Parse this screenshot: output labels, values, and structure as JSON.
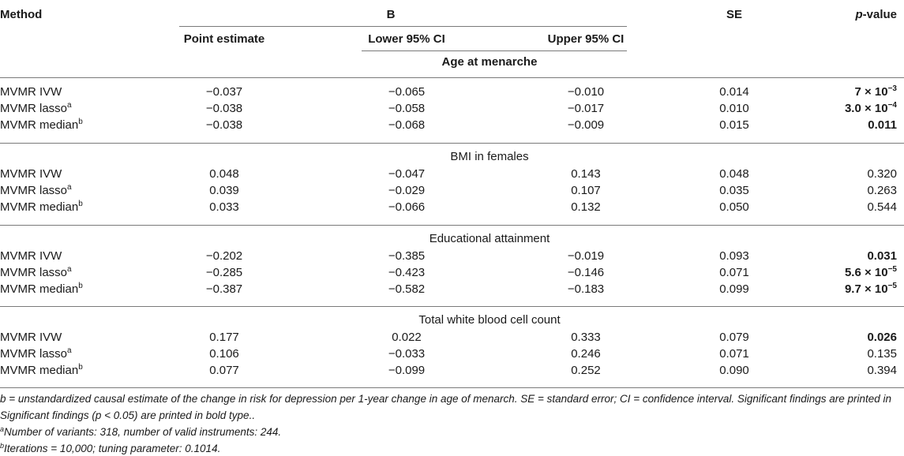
{
  "header": {
    "method": "Method",
    "b_group": "B",
    "point_estimate": "Point estimate",
    "lower_ci": "Lower 95% CI",
    "upper_ci": "Upper 95% CI",
    "se": "SE",
    "p_label": "p",
    "p_suffix": "-value"
  },
  "groups": [
    {
      "title": "Age at menarche",
      "rows": [
        {
          "method": "MVMR IVW",
          "sup": "",
          "pe": "−0.037",
          "lo": "−0.065",
          "up": "−0.010",
          "se": "0.014",
          "p_base": "7 × 10",
          "p_exp": "−3"
        },
        {
          "method": "MVMR lasso",
          "sup": "a",
          "pe": "−0.038",
          "lo": "−0.058",
          "up": "−0.017",
          "se": "0.010",
          "p_base": "3.0 × 10",
          "p_exp": "−4"
        },
        {
          "method": "MVMR median",
          "sup": "b",
          "pe": "−0.038",
          "lo": "−0.068",
          "up": "−0.009",
          "se": "0.015",
          "p_base": "0.011",
          "p_exp": ""
        }
      ]
    },
    {
      "title": "BMI in females",
      "rows": [
        {
          "method": "MVMR IVW",
          "sup": "",
          "pe": "0.048",
          "lo": "−0.047",
          "up": "0.143",
          "se": "0.048",
          "p_base": "0.320",
          "p_exp": ""
        },
        {
          "method": "MVMR lasso",
          "sup": "a",
          "pe": "0.039",
          "lo": "−0.029",
          "up": "0.107",
          "se": "0.035",
          "p_base": "0.263",
          "p_exp": ""
        },
        {
          "method": "MVMR median",
          "sup": "b",
          "pe": "0.033",
          "lo": "−0.066",
          "up": "0.132",
          "se": "0.050",
          "p_base": "0.544",
          "p_exp": ""
        }
      ]
    },
    {
      "title": "Educational attainment",
      "rows": [
        {
          "method": "MVMR IVW",
          "sup": "",
          "pe": "−0.202",
          "lo": "−0.385",
          "up": "−0.019",
          "se": "0.093",
          "p_base": "0.031",
          "p_exp": ""
        },
        {
          "method": "MVMR lasso",
          "sup": "a",
          "pe": "−0.285",
          "lo": "−0.423",
          "up": "−0.146",
          "se": "0.071",
          "p_base": "5.6 × 10",
          "p_exp": "−5"
        },
        {
          "method": "MVMR median",
          "sup": "b",
          "pe": "−0.387",
          "lo": "−0.582",
          "up": "−0.183",
          "se": "0.099",
          "p_base": "9.7 × 10",
          "p_exp": "−5"
        }
      ]
    },
    {
      "title": "Total white blood cell count",
      "rows": [
        {
          "method": "MVMR IVW",
          "sup": "",
          "pe": "0.177",
          "lo": "0.022",
          "up": "0.333",
          "se": "0.079",
          "p_base": "0.026",
          "p_exp": ""
        },
        {
          "method": "MVMR lasso",
          "sup": "a",
          "pe": "0.106",
          "lo": "−0.033",
          "up": "0.246",
          "se": "0.071",
          "p_base": "0.135",
          "p_exp": ""
        },
        {
          "method": "MVMR median",
          "sup": "b",
          "pe": "0.077",
          "lo": "−0.099",
          "up": "0.252",
          "se": "0.090",
          "p_base": "0.394",
          "p_exp": ""
        }
      ]
    }
  ],
  "footnotes": {
    "line1": "b = unstandardized causal estimate of the change in risk for depression per 1-year change in age of menarch. SE = standard error; CI = confidence interval. Significant findings are printed in",
    "line2": "Significant findings (p < 0.05) are printed in bold type..",
    "note_a_mark": "a",
    "note_a": "Number of variants: 318, number of valid instruments: 244.",
    "note_b_mark": "b",
    "note_b": "Iterations = 10,000; tuning parameter: 0.1014."
  }
}
